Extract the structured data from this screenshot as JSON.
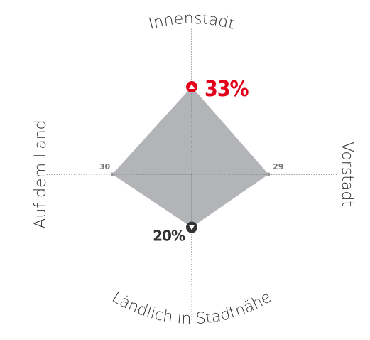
{
  "chart_data": {
    "type": "radar",
    "categories": [
      "Innenstadt",
      "Vorstadt",
      "Ländlich in Stadtnähe",
      "Auf dem Land"
    ],
    "values": [
      33,
      29,
      20,
      30
    ],
    "value_labels": [
      "33%",
      "29",
      "20%",
      "30"
    ],
    "color": "#b3b4b7",
    "max_color": "#e3001b",
    "min_color": "#333333",
    "rlim": [
      0,
      55
    ]
  }
}
